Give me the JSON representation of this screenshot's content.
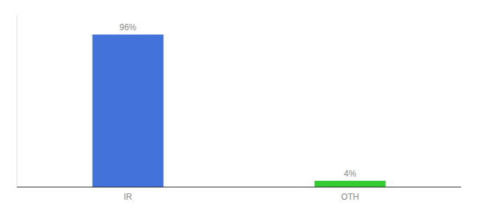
{
  "chart_data": {
    "type": "bar",
    "categories": [
      "IR",
      "OTH"
    ],
    "values": [
      96,
      4
    ],
    "value_labels": [
      "96%",
      "4%"
    ],
    "colors": [
      "#4472db",
      "#33cc33"
    ],
    "ylim": [
      0,
      108
    ],
    "data_labels": true,
    "tick_labels": "x"
  }
}
